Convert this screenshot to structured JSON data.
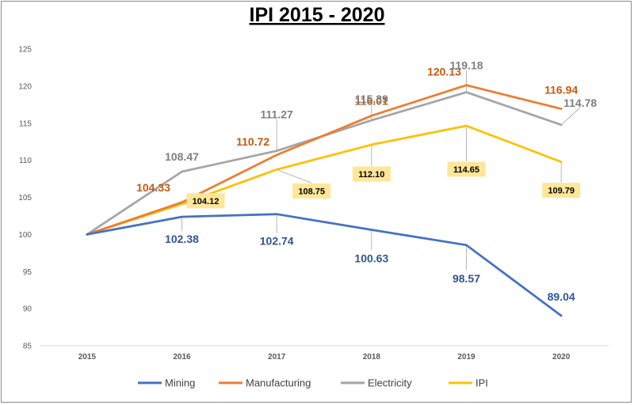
{
  "chart_data": {
    "type": "line",
    "title": "IPI 2015 - 2020",
    "xlabel": "",
    "ylabel": "",
    "categories": [
      "2015",
      "2016",
      "2017",
      "2018",
      "2019",
      "2020"
    ],
    "ylim": [
      85,
      125
    ],
    "yticks": [
      85,
      90,
      95,
      100,
      105,
      110,
      115,
      120,
      125
    ],
    "grid": false,
    "legend": "bottom",
    "series": [
      {
        "name": "Mining",
        "color": "#4472C4",
        "label_color": "#2F5597",
        "values": [
          100,
          102.38,
          102.74,
          100.63,
          98.57,
          89.04
        ],
        "labels": [
          "",
          "102.38",
          "102.74",
          "100.63",
          "98.57",
          "89.04"
        ]
      },
      {
        "name": "Manufacturing",
        "color": "#ED7D31",
        "label_color": "#C55A11",
        "values": [
          100,
          104.33,
          110.72,
          116.01,
          120.13,
          116.94
        ],
        "labels": [
          "",
          "104.33",
          "110.72",
          "116.01",
          "120.13",
          "116.94"
        ]
      },
      {
        "name": "Electricity",
        "color": "#A5A5A5",
        "label_color": "#7F7F7F",
        "values": [
          100,
          108.47,
          111.27,
          115.39,
          119.18,
          114.78
        ],
        "labels": [
          "",
          "108.47",
          "111.27",
          "115.39",
          "119.18",
          "114.78"
        ]
      },
      {
        "name": "IPI",
        "color": "#FFC000",
        "label_color": "#000000",
        "label_bg": "#FFE699",
        "values": [
          100,
          104.12,
          108.75,
          112.1,
          114.65,
          109.79
        ],
        "labels": [
          "",
          "104.12",
          "108.75",
          "112.10",
          "114.65",
          "109.79"
        ]
      }
    ]
  }
}
